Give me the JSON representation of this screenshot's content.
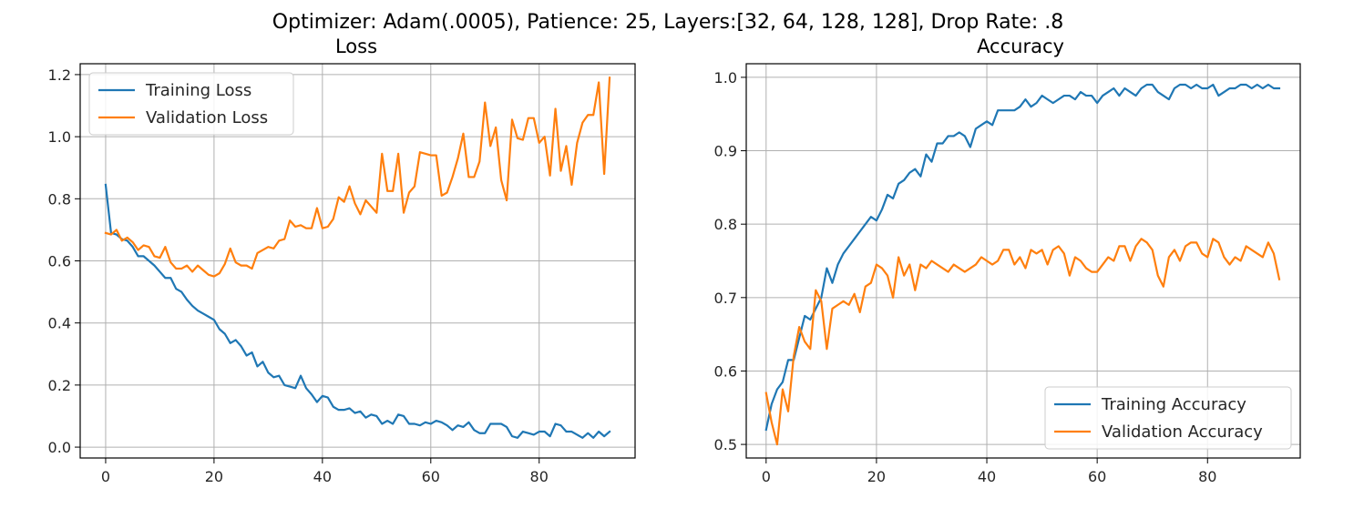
{
  "figure": {
    "suptitle": "Optimizer: Adam(.0005), Patience: 25, Layers:[32, 64, 128, 128], Drop Rate: .8"
  },
  "colors": {
    "training": "#1f77b4",
    "validation": "#ff7f0e",
    "grid": "#b0b0b0"
  },
  "chart_data": [
    {
      "type": "line",
      "title": "Loss",
      "xlabel": "",
      "ylabel": "",
      "xlim": [
        -4.7,
        97.7
      ],
      "ylim": [
        -0.035,
        1.235
      ],
      "xticks": [
        0,
        20,
        40,
        60,
        80
      ],
      "xtick_labels": [
        "0",
        "20",
        "40",
        "60",
        "80"
      ],
      "yticks": [
        0.0,
        0.2,
        0.4,
        0.6,
        0.8,
        1.0,
        1.2
      ],
      "ytick_labels": [
        "0.0",
        "0.2",
        "0.4",
        "0.6",
        "0.8",
        "1.0",
        "1.2"
      ],
      "grid": true,
      "legend_position": "upper-left",
      "series": [
        {
          "name": "Training Loss",
          "color": "#1f77b4",
          "x": [
            0,
            1,
            2,
            3,
            4,
            5,
            6,
            7,
            8,
            9,
            10,
            11,
            12,
            13,
            14,
            15,
            16,
            17,
            18,
            19,
            20,
            21,
            22,
            23,
            24,
            25,
            26,
            27,
            28,
            29,
            30,
            31,
            32,
            33,
            34,
            35,
            36,
            37,
            38,
            39,
            40,
            41,
            42,
            43,
            44,
            45,
            46,
            47,
            48,
            49,
            50,
            51,
            52,
            53,
            54,
            55,
            56,
            57,
            58,
            59,
            60,
            61,
            62,
            63,
            64,
            65,
            66,
            67,
            68,
            69,
            70,
            71,
            72,
            73,
            74,
            75,
            76,
            77,
            78,
            79,
            80,
            81,
            82,
            83,
            84,
            85,
            86,
            87,
            88,
            89,
            90,
            91,
            92,
            93
          ],
          "values": [
            0.845,
            0.69,
            0.685,
            0.67,
            0.665,
            0.645,
            0.615,
            0.615,
            0.6,
            0.585,
            0.565,
            0.545,
            0.545,
            0.51,
            0.5,
            0.475,
            0.455,
            0.44,
            0.43,
            0.42,
            0.41,
            0.38,
            0.365,
            0.335,
            0.345,
            0.325,
            0.295,
            0.305,
            0.26,
            0.275,
            0.24,
            0.225,
            0.23,
            0.2,
            0.195,
            0.19,
            0.23,
            0.19,
            0.17,
            0.145,
            0.165,
            0.16,
            0.13,
            0.12,
            0.12,
            0.125,
            0.11,
            0.115,
            0.095,
            0.105,
            0.1,
            0.075,
            0.085,
            0.075,
            0.105,
            0.1,
            0.075,
            0.075,
            0.07,
            0.08,
            0.075,
            0.085,
            0.08,
            0.07,
            0.055,
            0.07,
            0.065,
            0.08,
            0.055,
            0.045,
            0.045,
            0.075,
            0.075,
            0.075,
            0.065,
            0.035,
            0.03,
            0.05,
            0.045,
            0.04,
            0.05,
            0.05,
            0.035,
            0.075,
            0.07,
            0.05,
            0.05,
            0.04,
            0.03,
            0.045,
            0.03,
            0.05,
            0.035,
            0.05
          ]
        },
        {
          "name": "Validation Loss",
          "color": "#ff7f0e",
          "x": [
            0,
            1,
            2,
            3,
            4,
            5,
            6,
            7,
            8,
            9,
            10,
            11,
            12,
            13,
            14,
            15,
            16,
            17,
            18,
            19,
            20,
            21,
            22,
            23,
            24,
            25,
            26,
            27,
            28,
            29,
            30,
            31,
            32,
            33,
            34,
            35,
            36,
            37,
            38,
            39,
            40,
            41,
            42,
            43,
            44,
            45,
            46,
            47,
            48,
            49,
            50,
            51,
            52,
            53,
            54,
            55,
            56,
            57,
            58,
            59,
            60,
            61,
            62,
            63,
            64,
            65,
            66,
            67,
            68,
            69,
            70,
            71,
            72,
            73,
            74,
            75,
            76,
            77,
            78,
            79,
            80,
            81,
            82,
            83,
            84,
            85,
            86,
            87,
            88,
            89,
            90,
            91,
            92,
            93
          ],
          "values": [
            0.69,
            0.685,
            0.7,
            0.665,
            0.675,
            0.66,
            0.635,
            0.65,
            0.645,
            0.615,
            0.61,
            0.645,
            0.595,
            0.575,
            0.575,
            0.585,
            0.565,
            0.585,
            0.57,
            0.555,
            0.55,
            0.56,
            0.59,
            0.64,
            0.595,
            0.585,
            0.585,
            0.575,
            0.625,
            0.635,
            0.645,
            0.64,
            0.665,
            0.67,
            0.73,
            0.71,
            0.715,
            0.705,
            0.705,
            0.77,
            0.705,
            0.71,
            0.735,
            0.805,
            0.79,
            0.84,
            0.785,
            0.75,
            0.795,
            0.775,
            0.755,
            0.945,
            0.825,
            0.825,
            0.945,
            0.755,
            0.82,
            0.84,
            0.95,
            0.945,
            0.94,
            0.94,
            0.81,
            0.82,
            0.87,
            0.93,
            1.01,
            0.87,
            0.87,
            0.92,
            1.11,
            0.97,
            1.03,
            0.86,
            0.795,
            1.055,
            0.995,
            0.99,
            1.06,
            1.06,
            0.98,
            1.0,
            0.875,
            1.09,
            0.89,
            0.97,
            0.845,
            0.98,
            1.045,
            1.07,
            1.07,
            1.175,
            0.88,
            1.19
          ]
        }
      ]
    },
    {
      "type": "line",
      "title": "Accuracy",
      "xlabel": "",
      "ylabel": "",
      "xlim": [
        -3.6,
        96.8
      ],
      "ylim": [
        0.4815,
        1.0185
      ],
      "xticks": [
        0,
        20,
        40,
        60,
        80
      ],
      "xtick_labels": [
        "0",
        "20",
        "40",
        "60",
        "80"
      ],
      "yticks": [
        0.5,
        0.6,
        0.7,
        0.8,
        0.9,
        1.0
      ],
      "ytick_labels": [
        "0.5",
        "0.6",
        "0.7",
        "0.8",
        "0.9",
        "1.0"
      ],
      "grid": true,
      "legend_position": "lower-right",
      "series": [
        {
          "name": "Training Accuracy",
          "color": "#1f77b4",
          "x": [
            0,
            1,
            2,
            3,
            4,
            5,
            6,
            7,
            8,
            9,
            10,
            11,
            12,
            13,
            14,
            15,
            16,
            17,
            18,
            19,
            20,
            21,
            22,
            23,
            24,
            25,
            26,
            27,
            28,
            29,
            30,
            31,
            32,
            33,
            34,
            35,
            36,
            37,
            38,
            39,
            40,
            41,
            42,
            43,
            44,
            45,
            46,
            47,
            48,
            49,
            50,
            51,
            52,
            53,
            54,
            55,
            56,
            57,
            58,
            59,
            60,
            61,
            62,
            63,
            64,
            65,
            66,
            67,
            68,
            69,
            70,
            71,
            72,
            73,
            74,
            75,
            76,
            77,
            78,
            79,
            80,
            81,
            82,
            83,
            84,
            85,
            86,
            87,
            88,
            89,
            90,
            91,
            92,
            93
          ],
          "values": [
            0.52,
            0.555,
            0.575,
            0.585,
            0.615,
            0.615,
            0.645,
            0.675,
            0.67,
            0.685,
            0.7,
            0.74,
            0.72,
            0.745,
            0.76,
            0.77,
            0.78,
            0.79,
            0.8,
            0.81,
            0.805,
            0.82,
            0.84,
            0.835,
            0.855,
            0.86,
            0.87,
            0.875,
            0.865,
            0.895,
            0.885,
            0.91,
            0.91,
            0.92,
            0.92,
            0.925,
            0.92,
            0.905,
            0.93,
            0.935,
            0.94,
            0.935,
            0.955,
            0.955,
            0.955,
            0.955,
            0.96,
            0.97,
            0.96,
            0.965,
            0.975,
            0.97,
            0.965,
            0.97,
            0.975,
            0.975,
            0.97,
            0.98,
            0.975,
            0.975,
            0.965,
            0.975,
            0.98,
            0.985,
            0.975,
            0.985,
            0.98,
            0.975,
            0.985,
            0.99,
            0.99,
            0.98,
            0.975,
            0.97,
            0.985,
            0.99,
            0.99,
            0.985,
            0.99,
            0.985,
            0.985,
            0.99,
            0.975,
            0.98,
            0.985,
            0.985,
            0.99,
            0.99,
            0.985,
            0.99,
            0.985,
            0.99,
            0.985,
            0.985
          ]
        },
        {
          "name": "Validation Accuracy",
          "color": "#ff7f0e",
          "x": [
            0,
            1,
            2,
            3,
            4,
            5,
            6,
            7,
            8,
            9,
            10,
            11,
            12,
            13,
            14,
            15,
            16,
            17,
            18,
            19,
            20,
            21,
            22,
            23,
            24,
            25,
            26,
            27,
            28,
            29,
            30,
            31,
            32,
            33,
            34,
            35,
            36,
            37,
            38,
            39,
            40,
            41,
            42,
            43,
            44,
            45,
            46,
            47,
            48,
            49,
            50,
            51,
            52,
            53,
            54,
            55,
            56,
            57,
            58,
            59,
            60,
            61,
            62,
            63,
            64,
            65,
            66,
            67,
            68,
            69,
            70,
            71,
            72,
            73,
            74,
            75,
            76,
            77,
            78,
            79,
            80,
            81,
            82,
            83,
            84,
            85,
            86,
            87,
            88,
            89,
            90,
            91,
            92,
            93
          ],
          "values": [
            0.57,
            0.53,
            0.5,
            0.575,
            0.545,
            0.62,
            0.66,
            0.64,
            0.63,
            0.71,
            0.695,
            0.63,
            0.685,
            0.69,
            0.695,
            0.69,
            0.705,
            0.68,
            0.715,
            0.72,
            0.745,
            0.74,
            0.73,
            0.7,
            0.755,
            0.73,
            0.745,
            0.71,
            0.745,
            0.74,
            0.75,
            0.745,
            0.74,
            0.735,
            0.745,
            0.74,
            0.735,
            0.74,
            0.745,
            0.755,
            0.75,
            0.745,
            0.75,
            0.765,
            0.765,
            0.745,
            0.755,
            0.74,
            0.765,
            0.76,
            0.765,
            0.745,
            0.765,
            0.77,
            0.76,
            0.73,
            0.755,
            0.75,
            0.74,
            0.735,
            0.735,
            0.745,
            0.755,
            0.75,
            0.77,
            0.77,
            0.75,
            0.77,
            0.78,
            0.775,
            0.765,
            0.73,
            0.715,
            0.755,
            0.765,
            0.75,
            0.77,
            0.775,
            0.775,
            0.76,
            0.755,
            0.78,
            0.775,
            0.755,
            0.745,
            0.755,
            0.75,
            0.77,
            0.765,
            0.76,
            0.755,
            0.775,
            0.76,
            0.725
          ]
        }
      ]
    }
  ]
}
